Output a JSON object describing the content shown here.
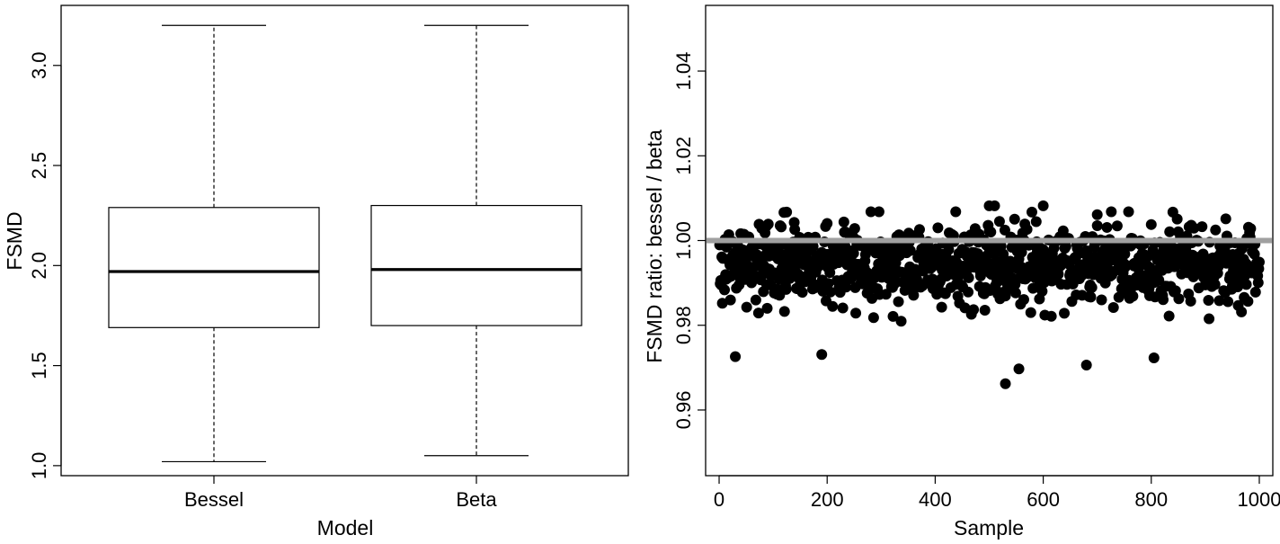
{
  "chart_data": [
    {
      "type": "box",
      "xlabel": "Model",
      "ylabel": "FSMD",
      "ylim": [
        0.95,
        3.3
      ],
      "yticks": [
        1.0,
        1.5,
        2.0,
        2.5,
        3.0
      ],
      "ytick_labels": [
        "1.0",
        "1.5",
        "2.0",
        "2.5",
        "3.0"
      ],
      "grid": false,
      "boxes": [
        {
          "label": "Bessel",
          "min": 1.02,
          "q1": 1.69,
          "median": 1.97,
          "q3": 2.29,
          "max": 3.2
        },
        {
          "label": "Beta",
          "min": 1.05,
          "q1": 1.7,
          "median": 1.98,
          "q3": 2.3,
          "max": 3.2
        }
      ]
    },
    {
      "type": "scatter",
      "xlabel": "Sample",
      "ylabel": "FSMD ratio:  bessel / beta",
      "xlim": [
        -25,
        1025
      ],
      "ylim": [
        0.9445,
        1.0555
      ],
      "xticks": [
        0,
        200,
        400,
        600,
        800,
        1000
      ],
      "xtick_labels": [
        "0",
        "200",
        "400",
        "600",
        "800",
        "1000"
      ],
      "yticks": [
        0.96,
        0.98,
        1.0,
        1.02,
        1.04
      ],
      "ytick_labels": [
        "0.96",
        "0.98",
        "1.00",
        "1.02",
        "1.04"
      ],
      "grid": false,
      "point_color": "#000000",
      "reference_line": {
        "y": 1.0,
        "color": "#a0a0a0"
      },
      "series": [
        {
          "n": 1000,
          "x_start": 1,
          "x_step": 1,
          "y_summary": {
            "center": 0.9945,
            "spread_low": 0.966,
            "spread_high": 1.008
          },
          "notable_points": [
            {
              "x": 530,
              "y": 0.9662
            },
            {
              "x": 555,
              "y": 0.9697
            },
            {
              "x": 680,
              "y": 0.9706
            },
            {
              "x": 30,
              "y": 0.9726
            },
            {
              "x": 805,
              "y": 0.9723
            },
            {
              "x": 190,
              "y": 0.9731
            },
            {
              "x": 500,
              "y": 1.0082
            },
            {
              "x": 510,
              "y": 1.0082
            },
            {
              "x": 600,
              "y": 1.0082
            },
            {
              "x": 125,
              "y": 1.0067
            },
            {
              "x": 840,
              "y": 1.0067
            },
            {
              "x": 700,
              "y": 1.0061
            }
          ]
        }
      ]
    }
  ]
}
